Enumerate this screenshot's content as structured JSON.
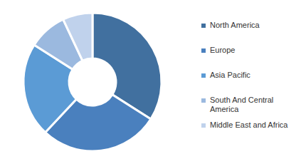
{
  "chart_data": {
    "type": "pie",
    "categories": [
      "North America",
      "Europe",
      "Asia Pacific",
      "South And Central America",
      "Middle East and Africa"
    ],
    "values": [
      34,
      28,
      22,
      9,
      7
    ],
    "colors": [
      "#41709f",
      "#4a80be",
      "#5b9bd5",
      "#9bb9df",
      "#c0d2ec"
    ],
    "legend": "right"
  }
}
